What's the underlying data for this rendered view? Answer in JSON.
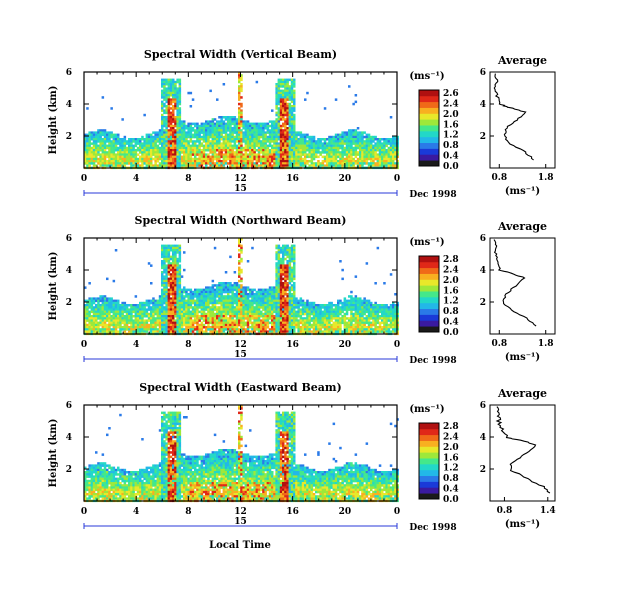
{
  "figure": {
    "xlabel": "Local Time",
    "date_label": "Dec 1998",
    "day_label": "15",
    "ylabel": "Height (km)",
    "colorbar_unit": "(ms⁻¹)",
    "profile_title": "Average",
    "profile_xlabel": "(ms⁻¹)"
  },
  "colorscale": [
    "#1a1a1a",
    "#3a1aa0",
    "#1a3ad8",
    "#2a7ae8",
    "#22b8e8",
    "#22d8c8",
    "#44e88a",
    "#9ee83a",
    "#e8e82a",
    "#f8b020",
    "#f06a18",
    "#e02818",
    "#b01010"
  ],
  "chart_data": [
    {
      "type": "heatmap",
      "title": "Spectral Width (Vertical Beam)",
      "x_ticks": [
        "0",
        "4",
        "8",
        "12",
        "16",
        "20",
        "0"
      ],
      "y_ticks": [
        "2",
        "4",
        "6"
      ],
      "x_range": [
        0,
        24
      ],
      "y_range": [
        0,
        6
      ],
      "colorbar_ticks": [
        "2.6",
        "2.4",
        "2.0",
        "1.6",
        "1.2",
        "0.8",
        "0.4",
        "0.0"
      ],
      "features": {
        "base_layer_top_km": 2.2,
        "convective_columns_hours": [
          6.6,
          15.3
        ],
        "thin_column_hour": 11.9
      },
      "profile": {
        "title": "Average",
        "x_ticks": [
          "0.8",
          "1.8"
        ],
        "x_range": [
          0.6,
          2.0
        ],
        "y_ticks": [
          "2",
          "4",
          "6"
        ],
        "height_km": [
          0.5,
          1.0,
          1.5,
          2.0,
          2.5,
          3.0,
          3.5,
          3.8,
          4.0,
          4.5,
          5.0,
          5.5,
          6.0
        ],
        "width_ms": [
          1.55,
          1.35,
          1.05,
          0.9,
          0.95,
          1.2,
          1.35,
          1.0,
          0.8,
          0.75,
          0.72,
          0.75,
          0.7
        ]
      }
    },
    {
      "type": "heatmap",
      "title": "Spectral Width (Northward Beam)",
      "x_ticks": [
        "0",
        "4",
        "8",
        "12",
        "16",
        "20",
        "0"
      ],
      "y_ticks": [
        "2",
        "4",
        "6"
      ],
      "x_range": [
        0,
        24
      ],
      "y_range": [
        0,
        6
      ],
      "colorbar_ticks": [
        "2.8",
        "2.4",
        "2.0",
        "1.6",
        "1.2",
        "0.8",
        "0.4",
        "0.0"
      ],
      "features": {
        "base_layer_top_km": 2.2,
        "convective_columns_hours": [
          6.6,
          15.3
        ],
        "thin_column_hour": 11.9
      },
      "profile": {
        "title": "Average",
        "x_ticks": [
          "0.8",
          "1.8"
        ],
        "x_range": [
          0.6,
          2.0
        ],
        "y_ticks": [
          "2",
          "4",
          "6"
        ],
        "height_km": [
          0.5,
          1.0,
          1.5,
          2.0,
          2.5,
          3.0,
          3.5,
          3.8,
          4.0,
          4.5,
          5.0,
          5.5,
          6.0
        ],
        "width_ms": [
          1.6,
          1.4,
          1.05,
          0.88,
          0.95,
          1.15,
          1.35,
          1.05,
          0.82,
          0.78,
          0.72,
          0.74,
          0.7
        ]
      }
    },
    {
      "type": "heatmap",
      "title": "Spectral Width (Eastward Beam)",
      "x_ticks": [
        "0",
        "4",
        "8",
        "12",
        "16",
        "20",
        "0"
      ],
      "y_ticks": [
        "2",
        "4",
        "6"
      ],
      "x_range": [
        0,
        24
      ],
      "y_range": [
        0,
        6
      ],
      "colorbar_ticks": [
        "2.8",
        "2.4",
        "2.0",
        "1.6",
        "1.2",
        "0.8",
        "0.4",
        "0.0"
      ],
      "features": {
        "base_layer_top_km": 2.2,
        "convective_columns_hours": [
          6.6,
          15.3
        ],
        "thin_column_hour": 11.9
      },
      "profile": {
        "title": "Average",
        "x_ticks": [
          "0.8",
          "1.4"
        ],
        "x_range": [
          0.6,
          1.5
        ],
        "y_ticks": [
          "2",
          "4",
          "6"
        ],
        "height_km": [
          0.5,
          1.0,
          1.5,
          2.0,
          2.5,
          3.0,
          3.5,
          3.8,
          4.0,
          4.5,
          5.0,
          5.5,
          6.0
        ],
        "width_ms": [
          1.42,
          1.3,
          1.05,
          0.88,
          0.92,
          1.1,
          1.25,
          1.0,
          0.82,
          0.78,
          0.72,
          0.74,
          0.7
        ]
      }
    }
  ]
}
